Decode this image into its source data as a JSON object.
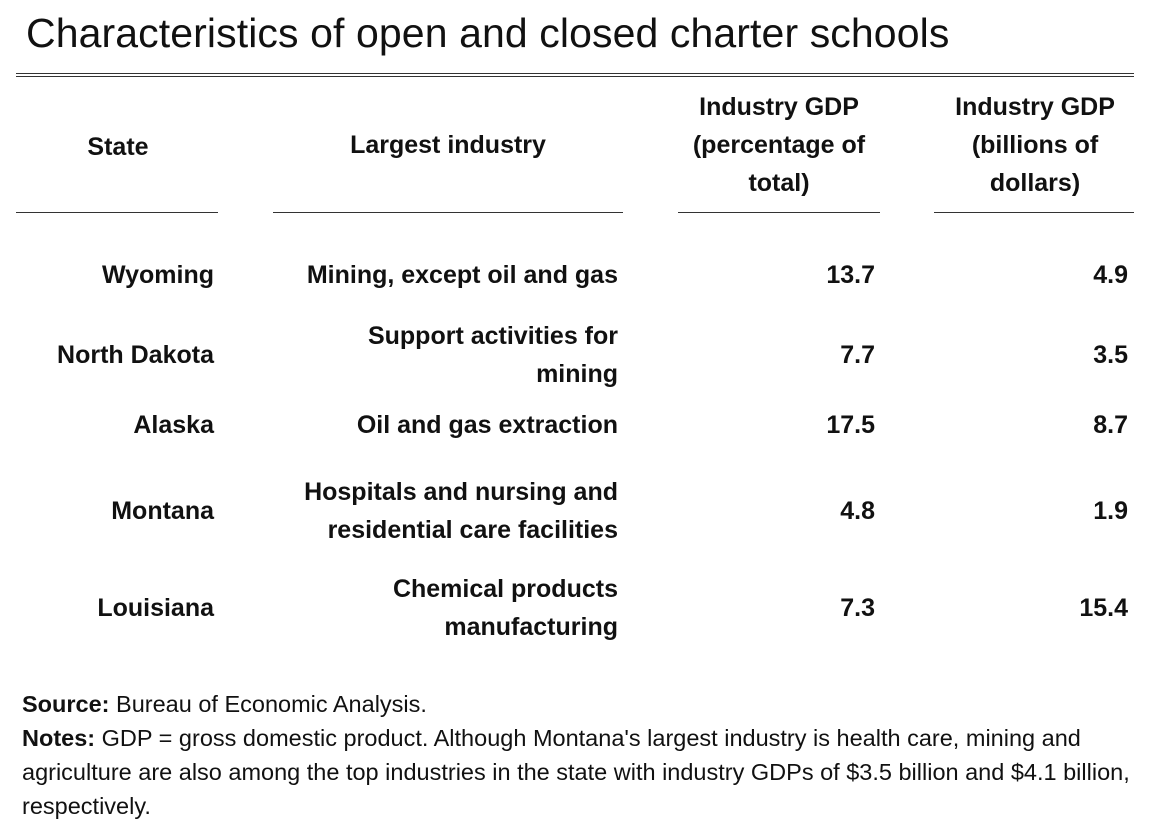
{
  "title": "Characteristics of open and closed charter schools",
  "headers": {
    "state": "State",
    "industry": "Largest industry",
    "gdp_pct": [
      "Industry GDP",
      "(percentage of",
      "total)"
    ],
    "gdp_bil": [
      "Industry GDP",
      "(billions of",
      "dollars)"
    ]
  },
  "rows": [
    {
      "state": "Wyoming",
      "industry": [
        "Mining, except oil and gas"
      ],
      "gdp_pct": "13.7",
      "gdp_bil": "4.9"
    },
    {
      "state": "North Dakota",
      "industry": [
        "Support activities for",
        "mining"
      ],
      "gdp_pct": "7.7",
      "gdp_bil": "3.5"
    },
    {
      "state": "Alaska",
      "industry": [
        "Oil and gas extraction"
      ],
      "gdp_pct": "17.5",
      "gdp_bil": "8.7"
    },
    {
      "state": "Montana",
      "industry": [
        "Hospitals and nursing and",
        "residential care facilities"
      ],
      "gdp_pct": "4.8",
      "gdp_bil": "1.9"
    },
    {
      "state": "Louisiana",
      "industry": [
        "Chemical products",
        "manufacturing"
      ],
      "gdp_pct": "7.3",
      "gdp_bil": "15.4"
    }
  ],
  "footer": {
    "source_label": "Source:",
    "source_text": " Bureau of Economic Analysis.",
    "notes_label": "Notes:",
    "notes_text": " GDP = gross domestic product. Although Montana's largest industry is health care, mining and agriculture are also among the top industries in the state with industry GDPs of $3.5 billion and $4.1 billion, respectively."
  }
}
